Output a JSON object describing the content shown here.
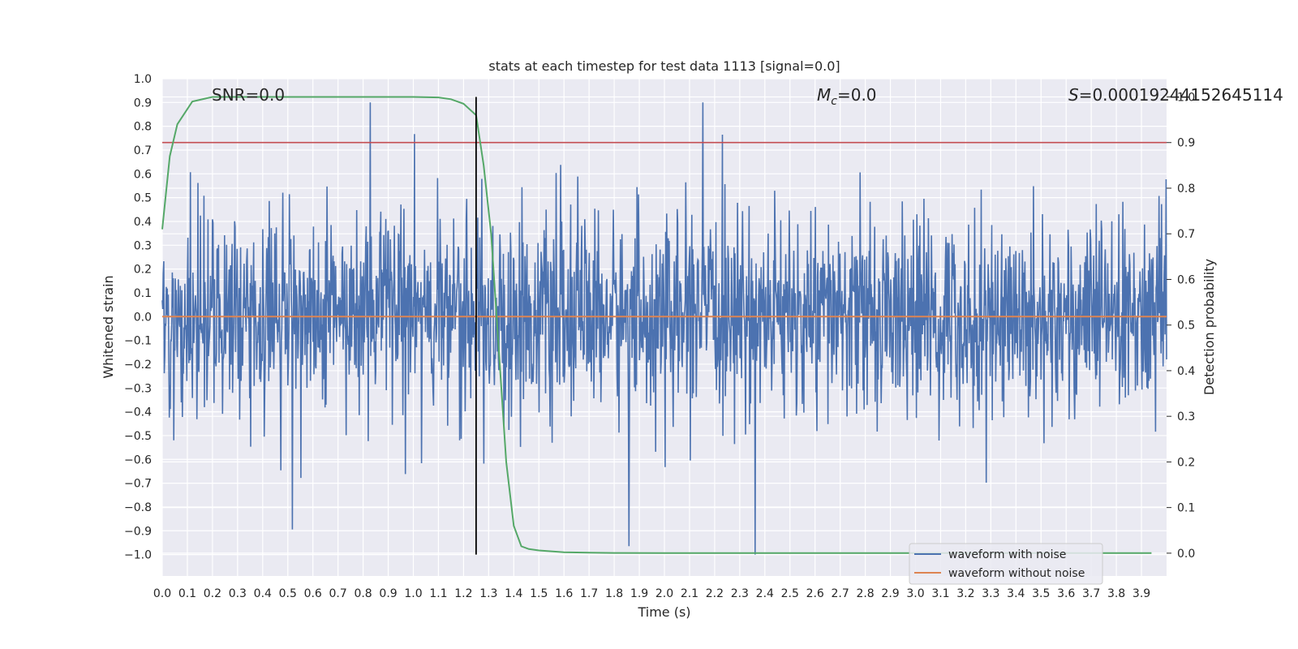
{
  "chart_data": {
    "type": "line",
    "title": "stats at each timestep for test data 1113 [signal=0.0]",
    "xlabel": "Time (s)",
    "ylabel_left": "Whitened strain",
    "ylabel_right": "Detection probability",
    "xlim": [
      0.0,
      4.0
    ],
    "ylim_left": [
      -1.09,
      1.0
    ],
    "ylim_right": [
      -0.05,
      1.04
    ],
    "x_ticks": [
      "0.0",
      "0.1",
      "0.2",
      "0.3",
      "0.4",
      "0.5",
      "0.6",
      "0.7",
      "0.8",
      "0.9",
      "1.0",
      "1.1",
      "1.2",
      "1.3",
      "1.4",
      "1.5",
      "1.6",
      "1.7",
      "1.8",
      "1.9",
      "2.0",
      "2.1",
      "2.2",
      "2.3",
      "2.4",
      "2.5",
      "2.6",
      "2.7",
      "2.8",
      "2.9",
      "3.0",
      "3.1",
      "3.2",
      "3.3",
      "3.4",
      "3.5",
      "3.6",
      "3.7",
      "3.8",
      "3.9"
    ],
    "y_left_ticks": [
      "1.0",
      "0.9",
      "0.8",
      "0.7",
      "0.6",
      "0.5",
      "0.4",
      "0.3",
      "0.2",
      "0.1",
      "0.0",
      "−0.1",
      "−0.2",
      "−0.3",
      "−0.4",
      "−0.5",
      "−0.6",
      "−0.7",
      "−0.8",
      "−0.9",
      "−1.0"
    ],
    "y_right_ticks": [
      "1.0",
      "0.9",
      "0.8",
      "0.7",
      "0.6",
      "0.5",
      "0.4",
      "0.3",
      "0.2",
      "0.1",
      "0.0"
    ],
    "annotations": {
      "snr": "SNR=0.0",
      "mc_symbol": "M",
      "mc_sub": "c",
      "mc_value": "=0.0",
      "s_symbol": "S",
      "s_value": "=0.00019244152645114"
    },
    "series": [
      {
        "name": "waveform with noise",
        "color": "#4c72b0",
        "description": "noise samples, amplitude approx ±0.35 typical with peaks to ±1.0"
      },
      {
        "name": "waveform without noise",
        "color": "#dd8452",
        "constant": 0.0
      },
      {
        "name": "detection probability",
        "color": "#55a868",
        "axis": "right",
        "x": [
          0.0,
          0.03,
          0.06,
          0.12,
          0.2,
          0.4,
          0.8,
          1.0,
          1.1,
          1.15,
          1.2,
          1.25,
          1.28,
          1.31,
          1.34,
          1.37,
          1.4,
          1.43,
          1.46,
          1.5,
          1.55,
          1.6,
          1.7,
          1.8,
          2.0,
          3.0,
          3.94
        ],
        "y": [
          0.71,
          0.87,
          0.94,
          0.99,
          1.0,
          1.0,
          1.0,
          1.0,
          0.999,
          0.995,
          0.985,
          0.96,
          0.85,
          0.7,
          0.45,
          0.2,
          0.06,
          0.015,
          0.009,
          0.006,
          0.004,
          0.002,
          0.001,
          0.0005,
          0.0002,
          0.0001,
          0.0001
        ]
      },
      {
        "name": "threshold",
        "color": "#c44e52",
        "axis": "right",
        "constant": 0.9
      }
    ],
    "vline_x": 1.25,
    "legend": {
      "placement": "lower-right",
      "entries": [
        "waveform with noise",
        "waveform without noise"
      ]
    }
  }
}
